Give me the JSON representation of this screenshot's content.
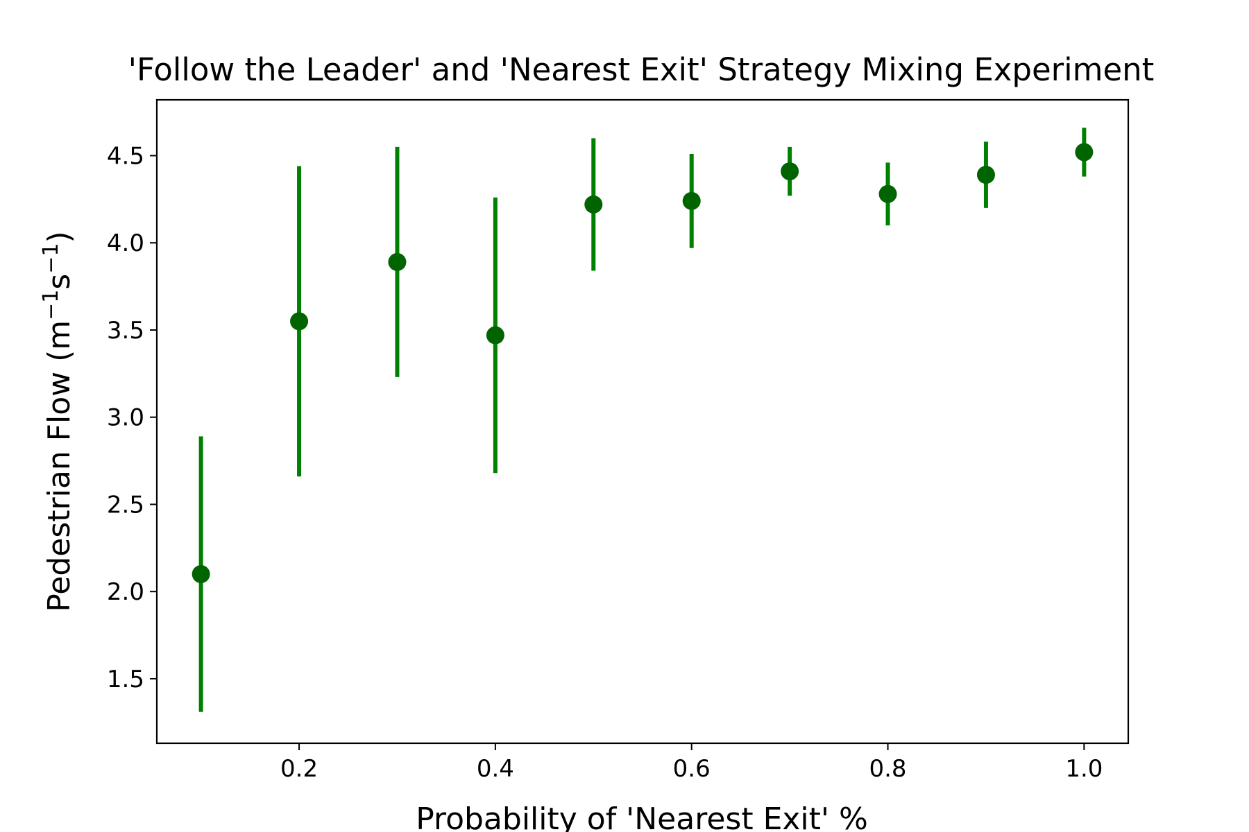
{
  "chart_data": {
    "type": "scatter",
    "title": "'Follow the Leader' and 'Nearest Exit' Strategy Mixing Experiment",
    "xlabel": "Probability of 'Nearest Exit' %",
    "ylabel": {
      "prefix": "Pedestrian Flow (m",
      "exp1": "−1",
      "mid": "s",
      "exp2": "−1",
      "suffix": ")"
    },
    "xlim": [
      0.055,
      1.045
    ],
    "ylim": [
      1.13,
      4.82
    ],
    "xticks": [
      0.2,
      0.4,
      0.6,
      0.8,
      1.0
    ],
    "xtick_labels": [
      "0.2",
      "0.4",
      "0.6",
      "0.8",
      "1.0"
    ],
    "yticks": [
      1.5,
      2.0,
      2.5,
      3.0,
      3.5,
      4.0,
      4.5
    ],
    "ytick_labels": [
      "1.5",
      "2.0",
      "2.5",
      "3.0",
      "3.5",
      "4.0",
      "4.5"
    ],
    "grid": false,
    "legend": "none",
    "series": [
      {
        "x": [
          0.1,
          0.2,
          0.3,
          0.4,
          0.5,
          0.6,
          0.7,
          0.8,
          0.9,
          1.0
        ],
        "y": [
          2.1,
          3.55,
          3.89,
          3.47,
          4.22,
          4.24,
          4.41,
          4.28,
          4.39,
          4.52
        ],
        "error": [
          0.79,
          0.89,
          0.66,
          0.79,
          0.38,
          0.27,
          0.14,
          0.18,
          0.19,
          0.14
        ]
      }
    ],
    "colors": {
      "marker": "#006400",
      "errorbar": "#008000",
      "axes": "#000000"
    }
  }
}
